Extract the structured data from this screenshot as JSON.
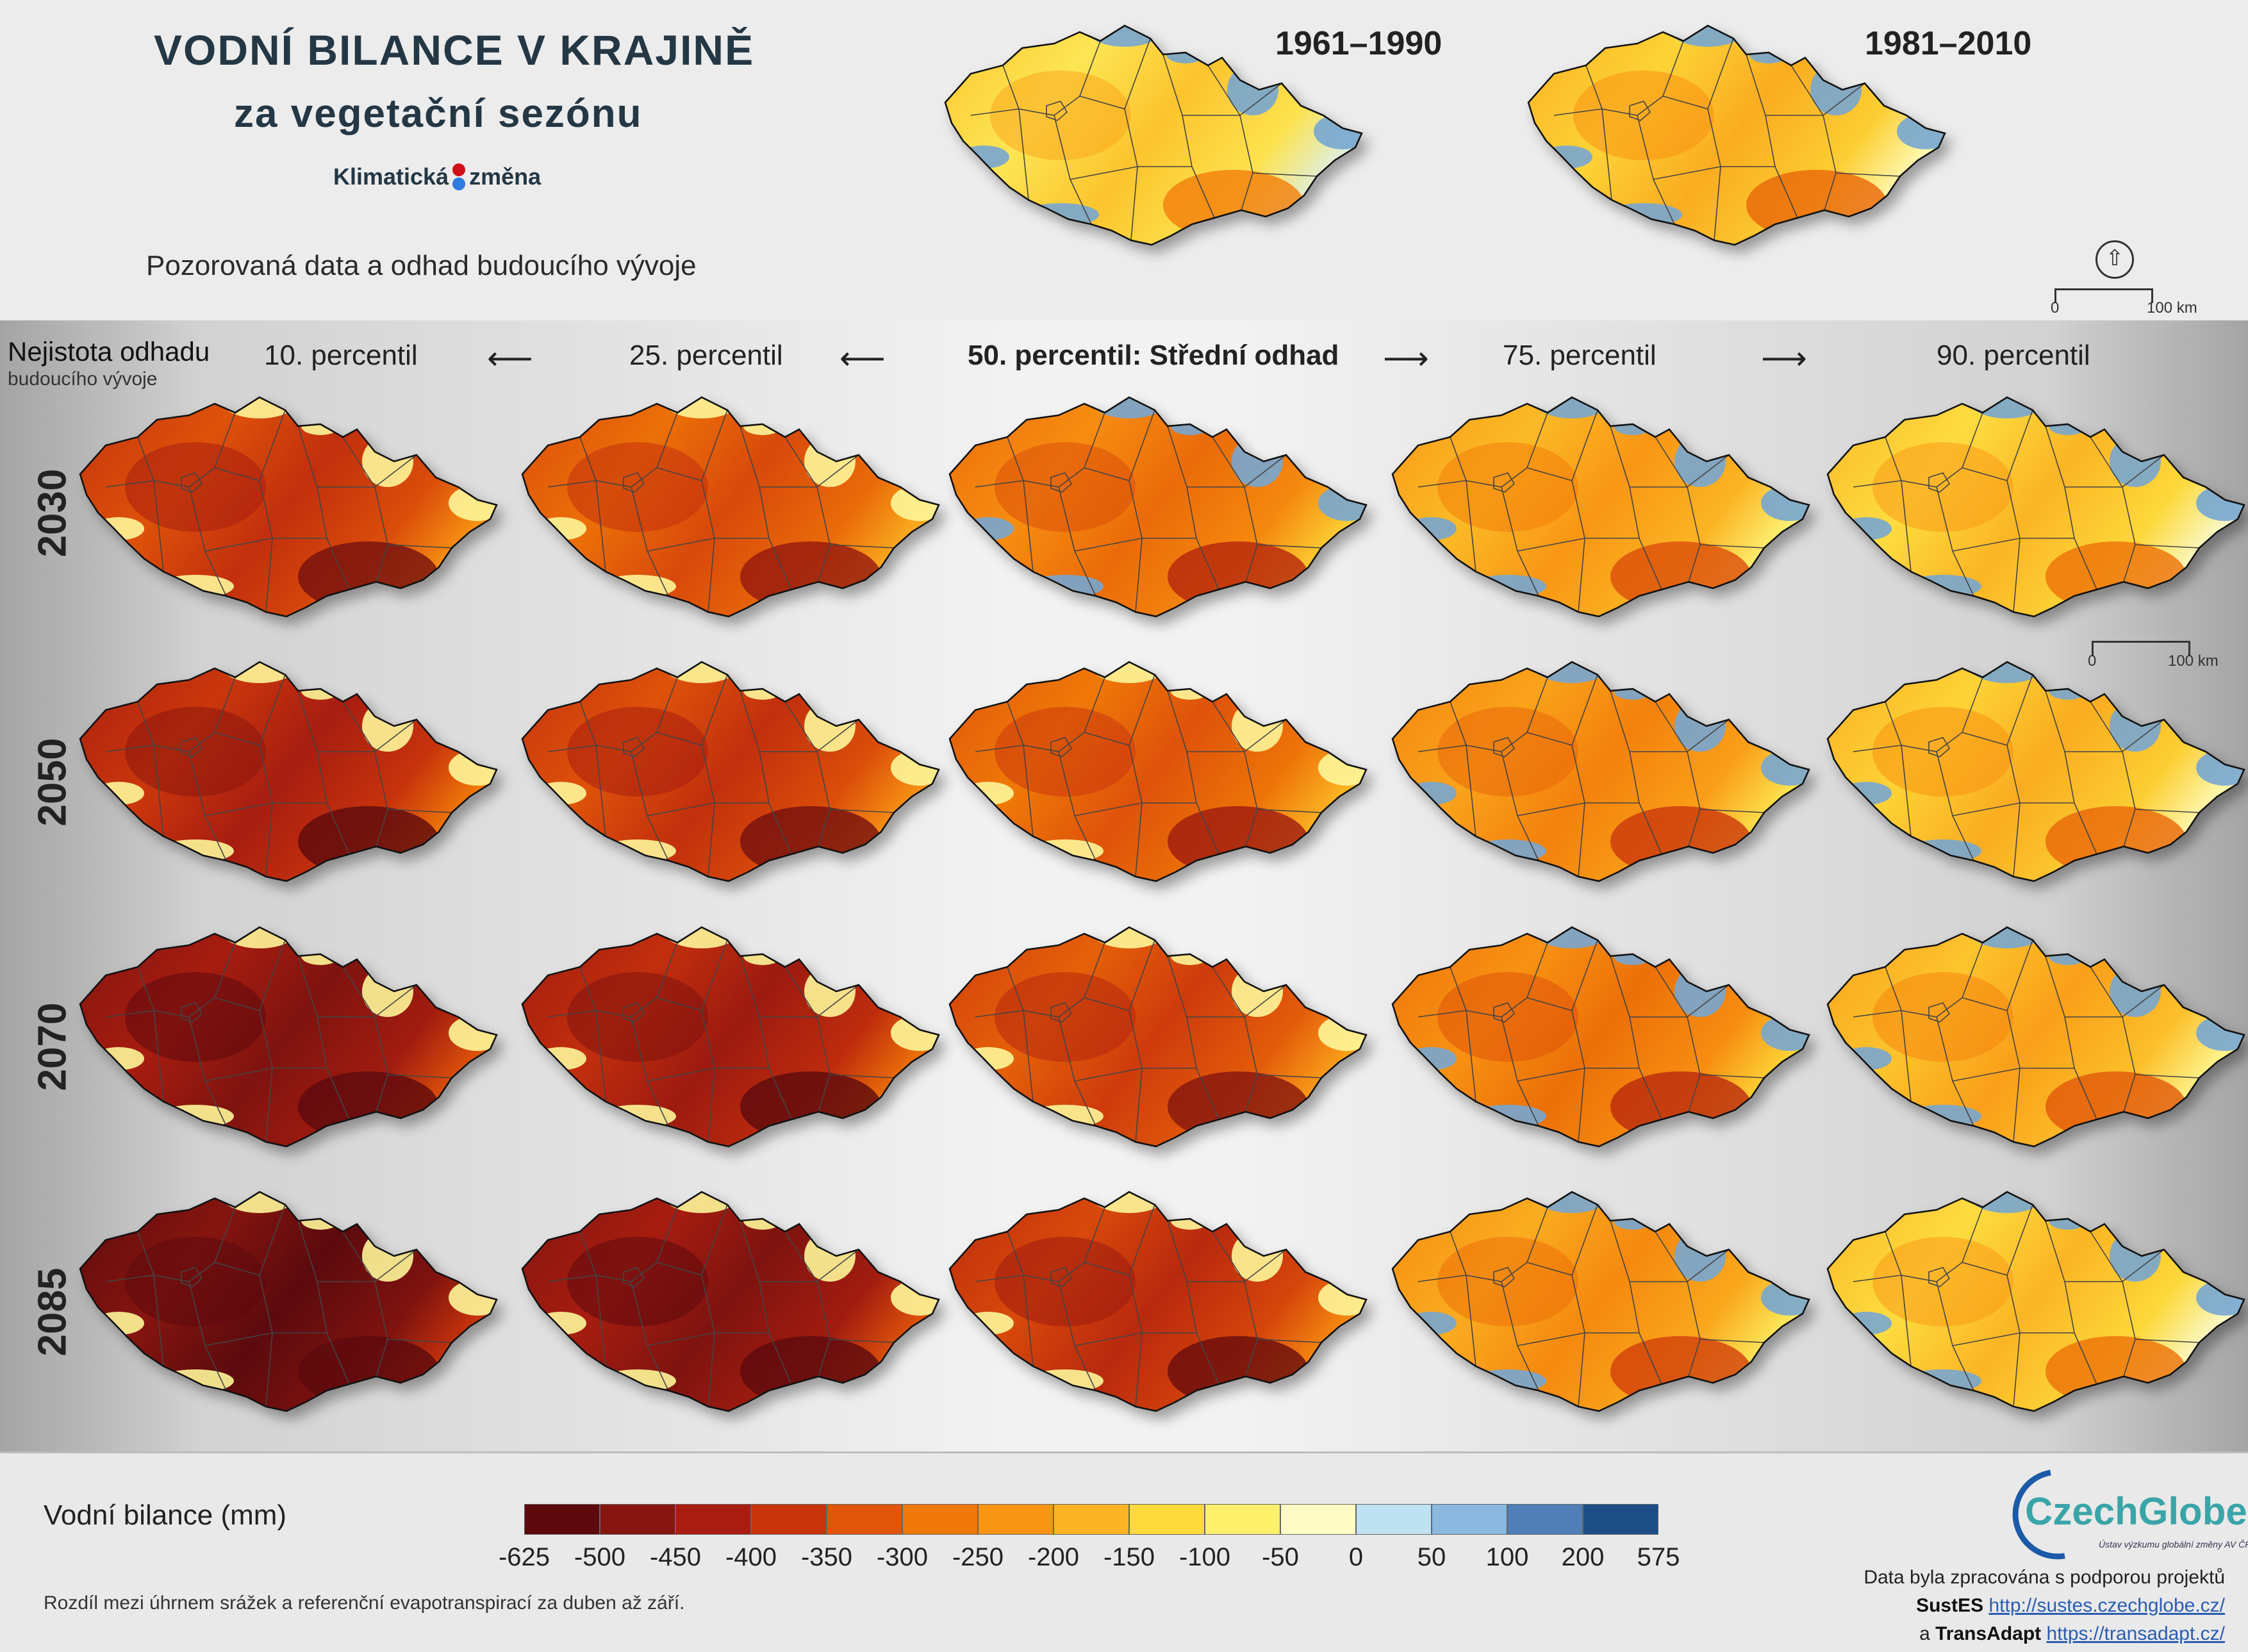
{
  "header": {
    "title_line1": "VODNÍ BILANCE V KRAJINĚ",
    "title_line2": "za vegetační sezónu",
    "logo_word1": "Klimatická",
    "logo_word2": "změna",
    "subtitle": "Pozorovaná data a odhad budoucího vývoje",
    "observed_periods": [
      "1961–1990",
      "1981–2010"
    ]
  },
  "uncertainty": {
    "line1": "Nejistota odhadu",
    "line2": "budoucího vývoje"
  },
  "percentiles": [
    {
      "label": "10. percentil"
    },
    {
      "label": "25. percentil"
    },
    {
      "label": "50. percentil: Střední odhad"
    },
    {
      "label": "75. percentil"
    },
    {
      "label": "90. percentil"
    }
  ],
  "arrow_glyphs": {
    "left": "⟵",
    "right": "⟶"
  },
  "years": [
    "2030",
    "2050",
    "2070",
    "2085"
  ],
  "scale_bar": {
    "start": "0",
    "end": "100 km"
  },
  "north_arrow_icon": "north-arrow-icon",
  "legend": {
    "title": "Vodní bilance (mm)",
    "ticks": [
      "-625",
      "-500",
      "-450",
      "-400",
      "-350",
      "-300",
      "-250",
      "-200",
      "-150",
      "-100",
      "-50",
      "0",
      "50",
      "100",
      "200",
      "575"
    ],
    "colors": [
      "#5c0a0e",
      "#86150f",
      "#a81d10",
      "#c9340c",
      "#e0550a",
      "#f07808",
      "#f99514",
      "#fbb524",
      "#fdd93a",
      "#fdf06b",
      "#fefbc4",
      "#bfe2f2",
      "#8ab8df",
      "#4f7fb6",
      "#1d4e85"
    ]
  },
  "note": "Rozdíl mezi úhrnem srážek a referenční evapotranspirací za duben až září.",
  "credits": {
    "logo_name": "CzechGlobe",
    "logo_subtitle": "Ústav výzkumu globální změny AV ČR, v.v.i.",
    "line1": "Data byla zpracována s podporou projektů",
    "project1": "SustES",
    "url1": "http://sustes.czechglobe.cz/",
    "connector": "a",
    "project2": "TransAdapt",
    "url2": "https://transadapt.cz/"
  },
  "map_color_levels": {
    "observed": [
      0.45,
      0.5
    ],
    "grid": [
      [
        0.78,
        0.72,
        0.65,
        0.55,
        0.48
      ],
      [
        0.84,
        0.78,
        0.7,
        0.6,
        0.5
      ],
      [
        0.92,
        0.86,
        0.75,
        0.64,
        0.53
      ],
      [
        0.99,
        0.92,
        0.8,
        0.58,
        0.48
      ]
    ]
  }
}
